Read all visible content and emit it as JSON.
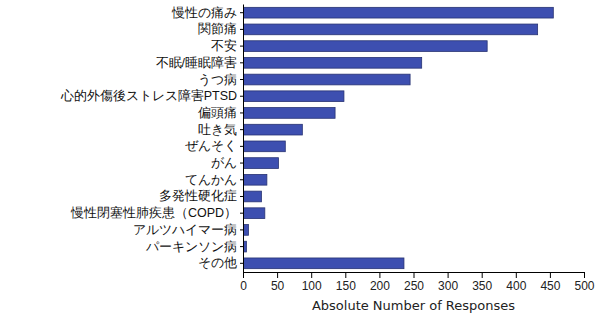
{
  "chart_data": {
    "type": "bar",
    "orientation": "horizontal",
    "x_label": "Absolute Number of Responses",
    "categories": [
      "慢性の痛み",
      "関節痛",
      "不安",
      "不眠/睡眠障害",
      "うつ病",
      "心的外傷後ストレス障害PTSD",
      "偏頭痛",
      "吐き気",
      "ぜんそく",
      "がん",
      "てんかん",
      "多発性硬化症",
      "慢性閉塞性肺疾患（COPD）",
      "アルツハイマー病",
      "パーキンソン病",
      "その他"
    ],
    "values": [
      455,
      432,
      358,
      262,
      245,
      148,
      135,
      87,
      62,
      52,
      35,
      27,
      32,
      8,
      5,
      236
    ],
    "color": "#3d4fb0",
    "xlim": [
      0,
      500
    ],
    "xticks": [
      0,
      50,
      100,
      150,
      200,
      250,
      300,
      350,
      400,
      450,
      500
    ],
    "grid": false
  }
}
